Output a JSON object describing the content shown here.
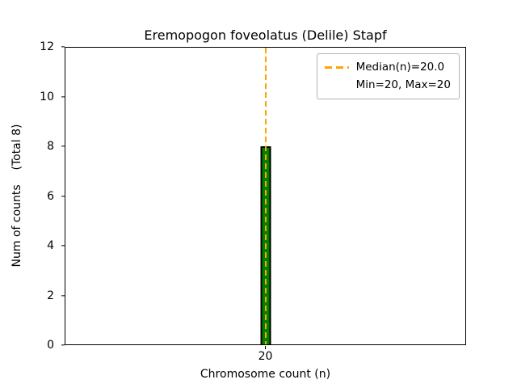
{
  "chart_data": {
    "type": "bar",
    "title": "Eremopogon foveolatus (Delile) Stapf",
    "xlabel": "Chromosome count (n)",
    "ylabel": "Num of counts    (Total 8)",
    "categories": [
      "20"
    ],
    "values": [
      8
    ],
    "total_counts": 8,
    "ylim": [
      0,
      12
    ],
    "yticks": [
      0,
      2,
      4,
      6,
      8,
      10,
      12
    ],
    "xticks": [
      "20"
    ],
    "median": 20.0,
    "min": 20,
    "max": 20,
    "legend": [
      "Median(n)=20.0",
      "Min=20, Max=20"
    ],
    "legend_position": "upper right",
    "grid": false,
    "colors": {
      "bar_fill": "#008000",
      "bar_edge": "#000000",
      "median_line": "#ffa500",
      "axes": "#000000",
      "background": "#ffffff"
    }
  }
}
